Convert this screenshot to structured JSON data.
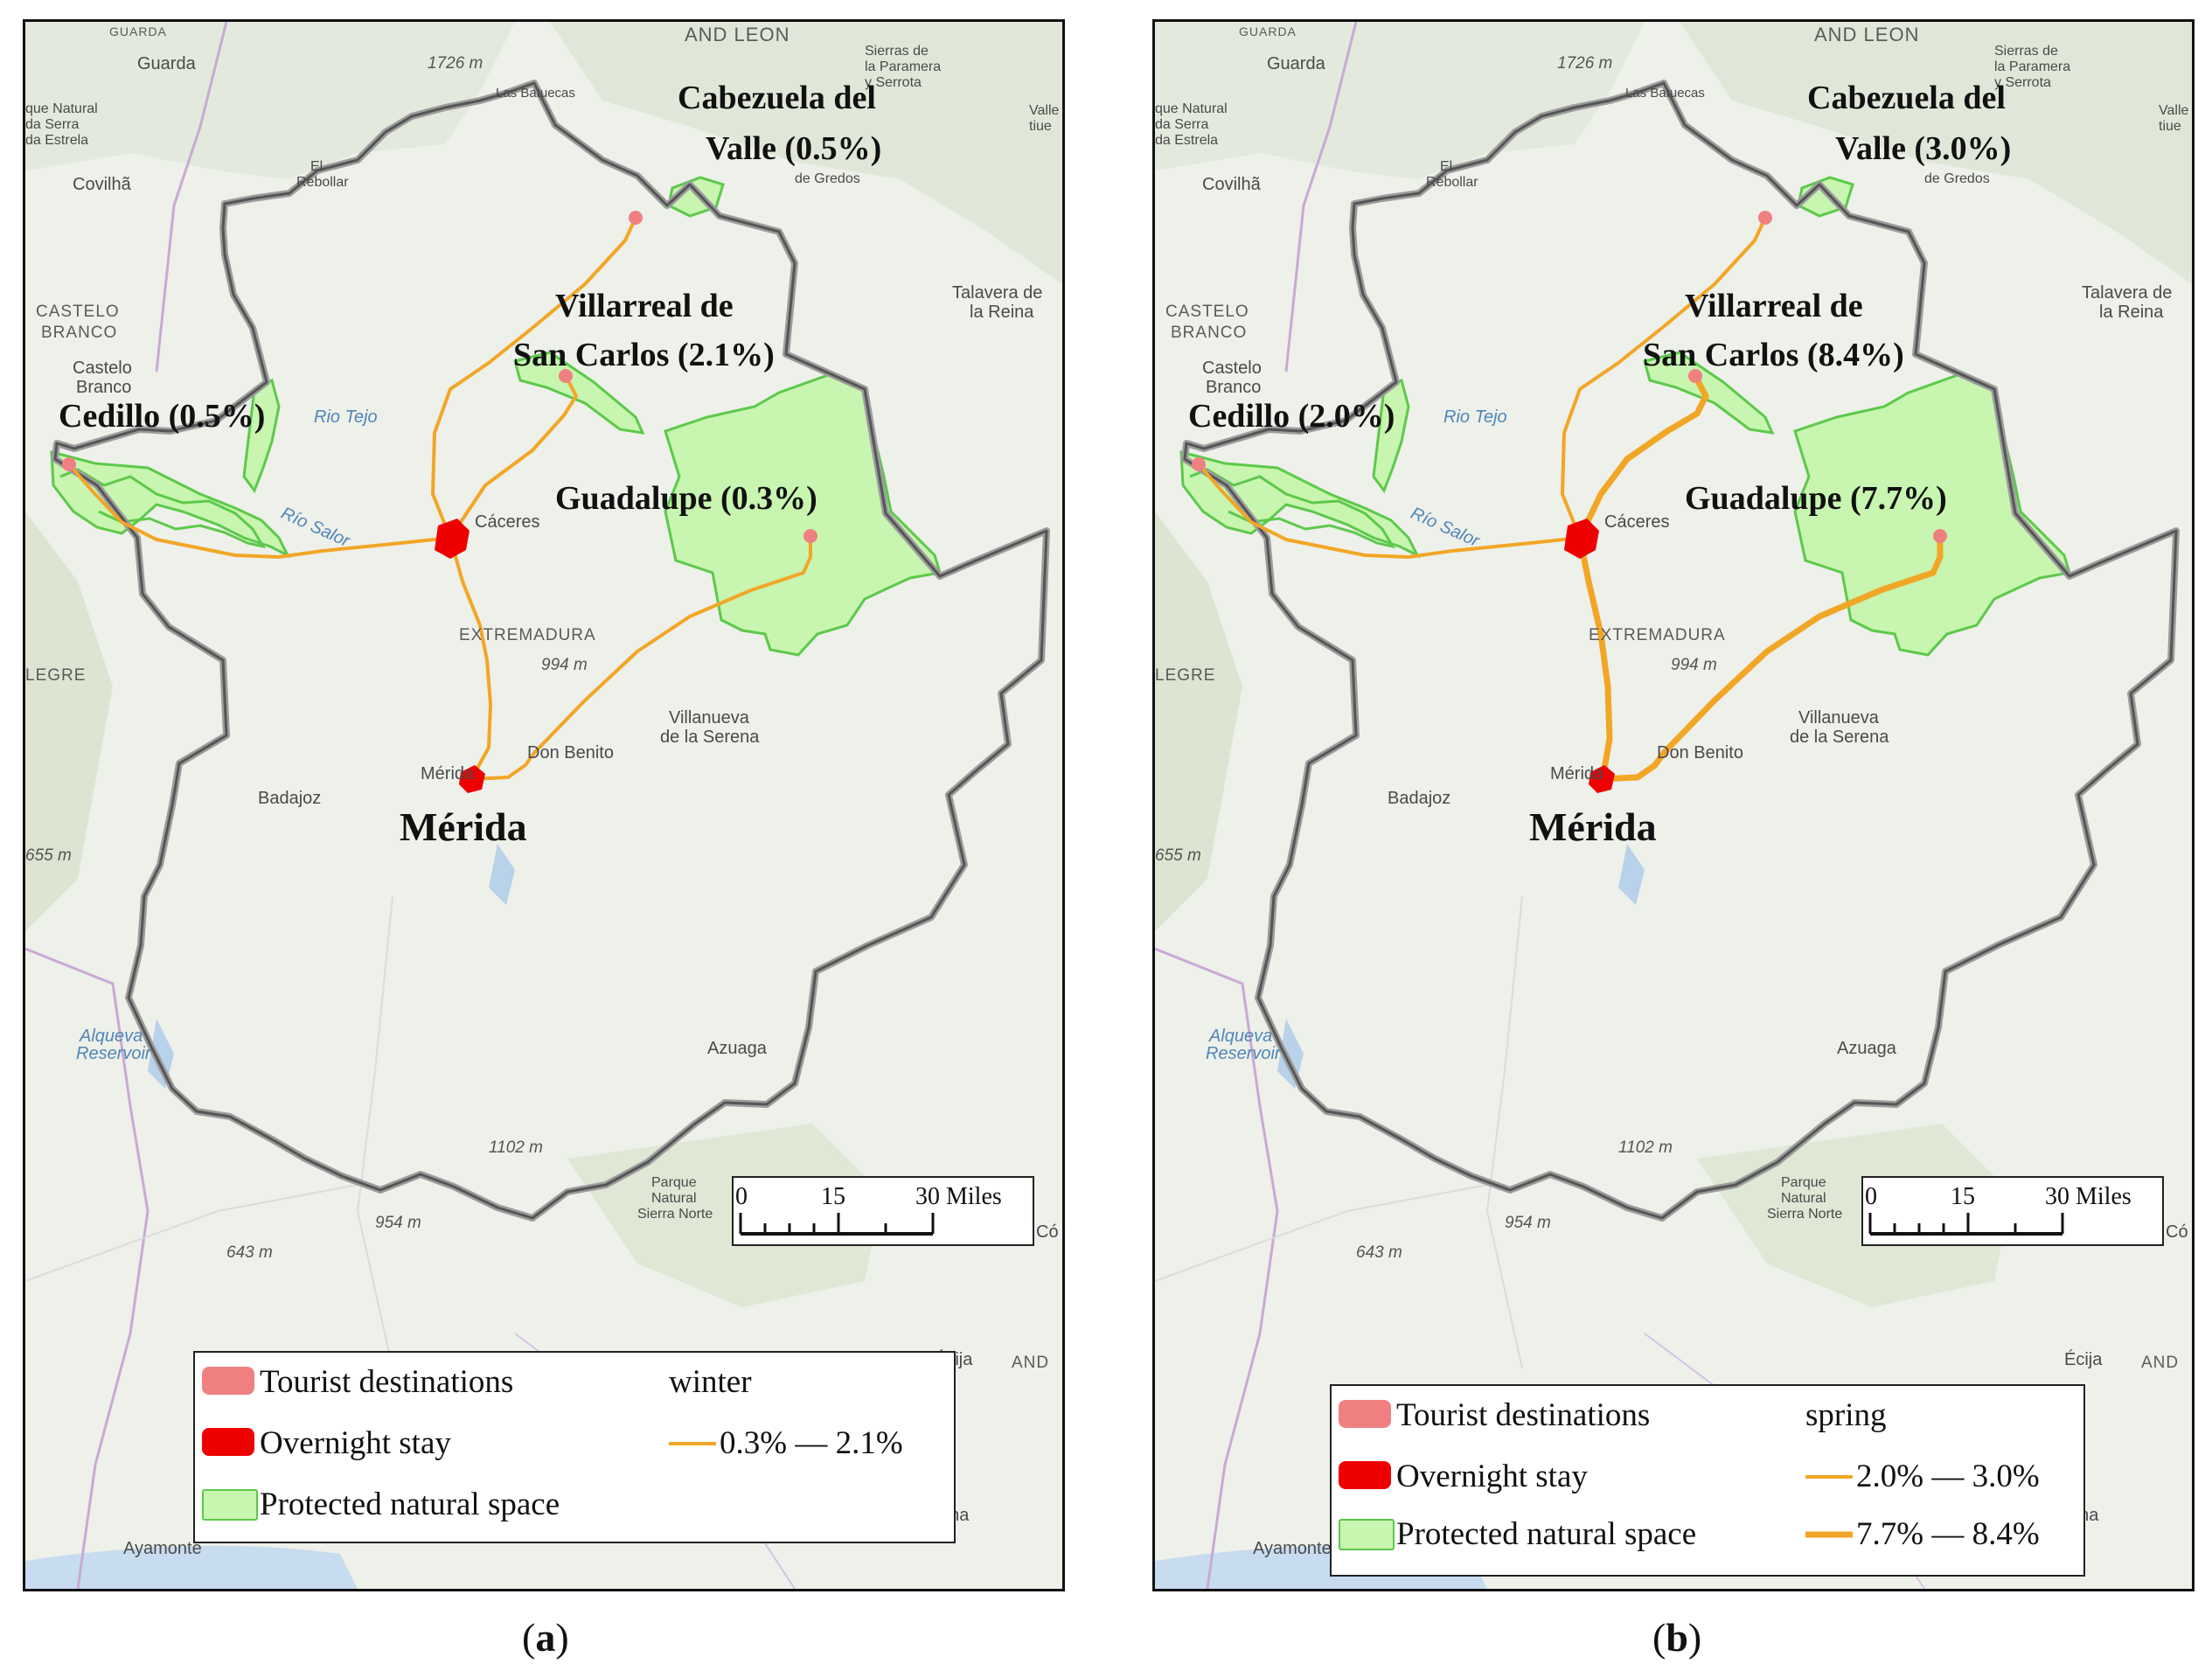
{
  "panels": [
    {
      "id": "a",
      "caption_letter": "a",
      "season": "winter",
      "legend": {
        "items": [
          "Tourist destinations",
          "Overnight stay",
          "Protected natural space"
        ],
        "season_title": "winter",
        "ranges": [
          "0.3% — 2.1%"
        ]
      },
      "destinations": {
        "cabezuela_line1": "Cabezuela del",
        "cabezuela_line2": "Valle (0.5%)",
        "villarreal_line1": "Villarreal de",
        "villarreal_line2": "San Carlos (2.1%)",
        "cedillo": "Cedillo (0.5%)",
        "guadalupe": "Guadalupe (0.3%)",
        "merida": "Mérida"
      }
    },
    {
      "id": "b",
      "caption_letter": "b",
      "season": "spring",
      "legend": {
        "items": [
          "Tourist destinations",
          "Overnight stay",
          "Protected natural space"
        ],
        "season_title": "spring",
        "ranges": [
          "2.0% — 3.0%",
          "7.7% — 8.4%"
        ]
      },
      "destinations": {
        "cabezuela_line1": "Cabezuela del",
        "cabezuela_line2": "Valle (3.0%)",
        "villarreal_line1": "Villarreal de",
        "villarreal_line2": "San Carlos (8.4%)",
        "cedillo": "Cedillo (2.0%)",
        "guadalupe": "Guadalupe (7.7%)",
        "merida": "Mérida"
      }
    }
  ],
  "basemap": {
    "guarda": "Guarda",
    "covilha": "Covilhã",
    "castelo_branco_caps_1": "CASTELO",
    "castelo_branco_caps_2": "BRANCO",
    "castelo_branco_1": "Castelo",
    "castelo_branco_2": "Branco",
    "castilla_leon": "AND LEON",
    "guarda_caps": "GUARDA",
    "las_batuecas": "Las Batuecas",
    "elev_1726": "1726 m",
    "sierras_1": "Sierras de",
    "sierras_2": "la Paramera",
    "sierras_3": "y Serrota",
    "parque_serra_1": "que Natural",
    "parque_serra_2": "da Serra",
    "parque_serra_3": "da Estrela",
    "el_rebollar_1": "El",
    "el_rebollar_2": "Rebollar",
    "gredos": "de Gredos",
    "valle_1": "Valle",
    "valle_2": "tiue",
    "talavera_1": "Talavera de",
    "talavera_2": "la Reina",
    "rio_tejo": "Rio Tejo",
    "rio_salor": "Río Salor",
    "caceres": "Cáceres",
    "extremadura": "EXTREMADURA",
    "elev_994": "994 m",
    "villanueva_1": "Villanueva",
    "villanueva_2": "de la Serena",
    "don_benito": "Don Benito",
    "merida_small": "Mérida",
    "badajoz": "Badajoz",
    "elev_655": "655 m",
    "alegre": "LEGRE",
    "alqueva_1": "Alqueva",
    "alqueva_2": "Reservoir",
    "azuaga": "Azuaga",
    "elev_1102": "1102 m",
    "elev_954": "954 m",
    "elev_643": "643 m",
    "sierra_norte_1": "Parque",
    "sierra_norte_2": "Natural",
    "sierra_norte_3": "Sierra Norte",
    "ecija": "Écija",
    "and": "AND",
    "osuna": "suna",
    "ayamonte": "Ayamonte",
    "cor": "Có"
  },
  "scale": {
    "t0": "0",
    "t15": "15",
    "t30": "30 Miles"
  },
  "colors": {
    "destination": "#f08080",
    "overnight": "#ee0000",
    "protected_fill": "#c8f5b0",
    "protected_stroke": "#5cc94a",
    "route": "#f2a626",
    "boundary": "#555555",
    "basemap": "#eef0ea"
  }
}
